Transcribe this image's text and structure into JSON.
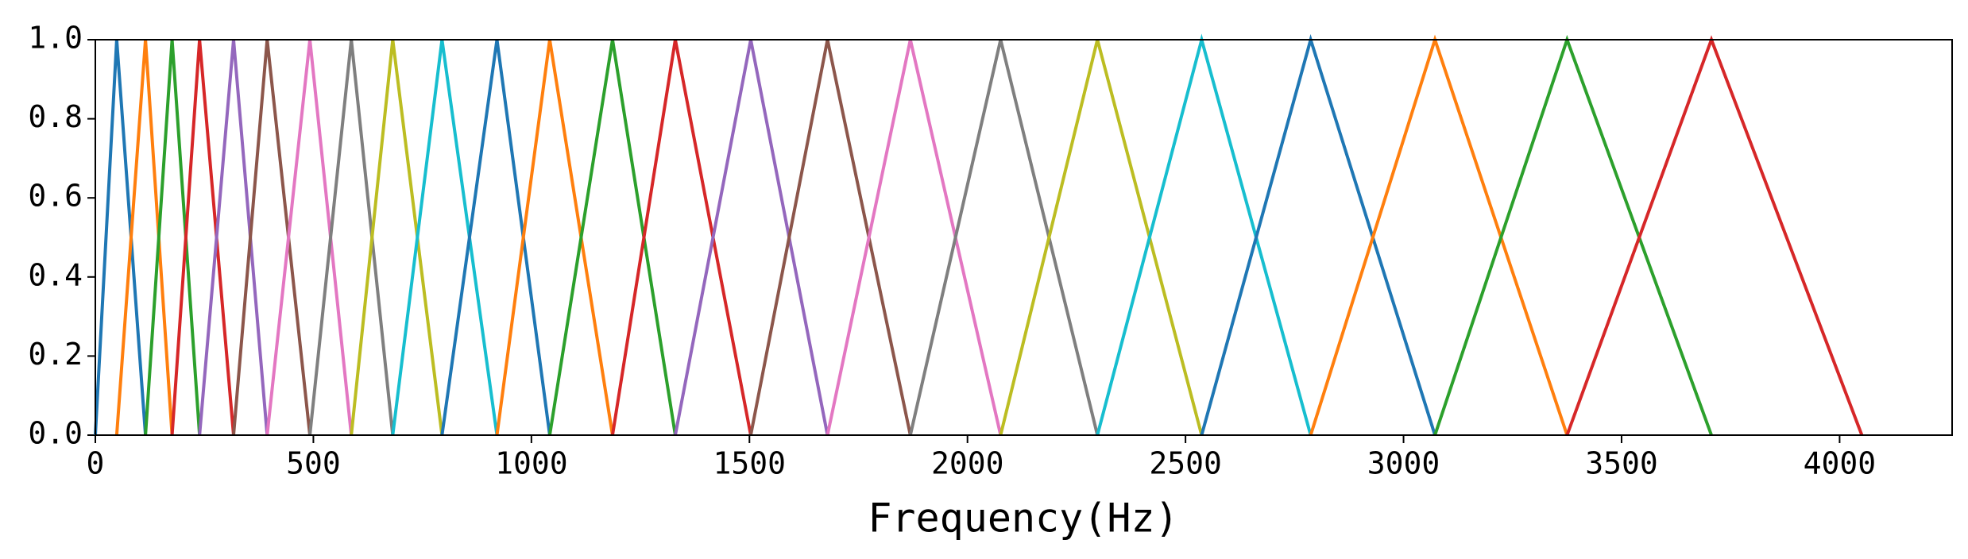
{
  "chart_data": {
    "type": "line",
    "x_label": "Frequency(Hz)",
    "xlim": [
      0,
      4258
    ],
    "xticks": [
      0,
      500,
      1000,
      1500,
      2000,
      2500,
      3000,
      3500,
      4000
    ],
    "ylim": [
      0,
      1
    ],
    "yticks": [
      {
        "value": 0,
        "label": "0.0"
      },
      0.2,
      0.4,
      0.6,
      0.8,
      {
        "value": 1,
        "label": "1.0"
      }
    ],
    "series": [
      {
        "color": "#1f77b4",
        "x": [
          0,
          49,
          115
        ],
        "values": [
          0,
          1,
          0
        ]
      },
      {
        "color": "#ff7f0e",
        "x": [
          49,
          115,
          176
        ],
        "values": [
          0,
          1,
          0
        ]
      },
      {
        "color": "#2ca02c",
        "x": [
          115,
          176,
          239
        ],
        "values": [
          0,
          1,
          0
        ]
      },
      {
        "color": "#d62728",
        "x": [
          176,
          239,
          317
        ],
        "values": [
          0,
          1,
          0
        ]
      },
      {
        "color": "#9467bd",
        "x": [
          239,
          317,
          394
        ],
        "values": [
          0,
          1,
          0
        ]
      },
      {
        "color": "#8c564b",
        "x": [
          317,
          394,
          492
        ],
        "values": [
          0,
          1,
          0
        ]
      },
      {
        "color": "#e377c2",
        "x": [
          394,
          492,
          587
        ],
        "values": [
          0,
          1,
          0
        ]
      },
      {
        "color": "#7f7f7f",
        "x": [
          492,
          587,
          682
        ],
        "values": [
          0,
          1,
          0
        ]
      },
      {
        "color": "#bcbd22",
        "x": [
          587,
          682,
          795
        ],
        "values": [
          0,
          1,
          0
        ]
      },
      {
        "color": "#17becf",
        "x": [
          682,
          795,
          921
        ],
        "values": [
          0,
          1,
          0
        ]
      },
      {
        "color": "#1f77b4",
        "x": [
          795,
          921,
          1042
        ],
        "values": [
          0,
          1,
          0
        ]
      },
      {
        "color": "#ff7f0e",
        "x": [
          921,
          1042,
          1186
        ],
        "values": [
          0,
          1,
          0
        ]
      },
      {
        "color": "#2ca02c",
        "x": [
          1042,
          1186,
          1330
        ],
        "values": [
          0,
          1,
          0
        ]
      },
      {
        "color": "#d62728",
        "x": [
          1186,
          1330,
          1503
        ],
        "values": [
          0,
          1,
          0
        ]
      },
      {
        "color": "#9467bd",
        "x": [
          1330,
          1503,
          1679
        ],
        "values": [
          0,
          1,
          0
        ]
      },
      {
        "color": "#8c564b",
        "x": [
          1503,
          1679,
          1869
        ],
        "values": [
          0,
          1,
          0
        ]
      },
      {
        "color": "#e377c2",
        "x": [
          1679,
          1869,
          2076
        ],
        "values": [
          0,
          1,
          0
        ]
      },
      {
        "color": "#7f7f7f",
        "x": [
          1869,
          2076,
          2298
        ],
        "values": [
          0,
          1,
          0
        ]
      },
      {
        "color": "#bcbd22",
        "x": [
          2076,
          2298,
          2537
        ],
        "values": [
          0,
          1,
          0
        ]
      },
      {
        "color": "#17becf",
        "x": [
          2298,
          2537,
          2787
        ],
        "values": [
          0,
          1,
          0
        ]
      },
      {
        "color": "#1f77b4",
        "x": [
          2537,
          2787,
          3072
        ],
        "values": [
          0,
          1,
          0
        ]
      },
      {
        "color": "#ff7f0e",
        "x": [
          2787,
          3072,
          3375
        ],
        "values": [
          0,
          1,
          0
        ]
      },
      {
        "color": "#2ca02c",
        "x": [
          3072,
          3375,
          3706
        ],
        "values": [
          0,
          1,
          0
        ]
      },
      {
        "color": "#d62728",
        "x": [
          3375,
          3706,
          4051
        ],
        "values": [
          0,
          1,
          0
        ]
      }
    ]
  }
}
